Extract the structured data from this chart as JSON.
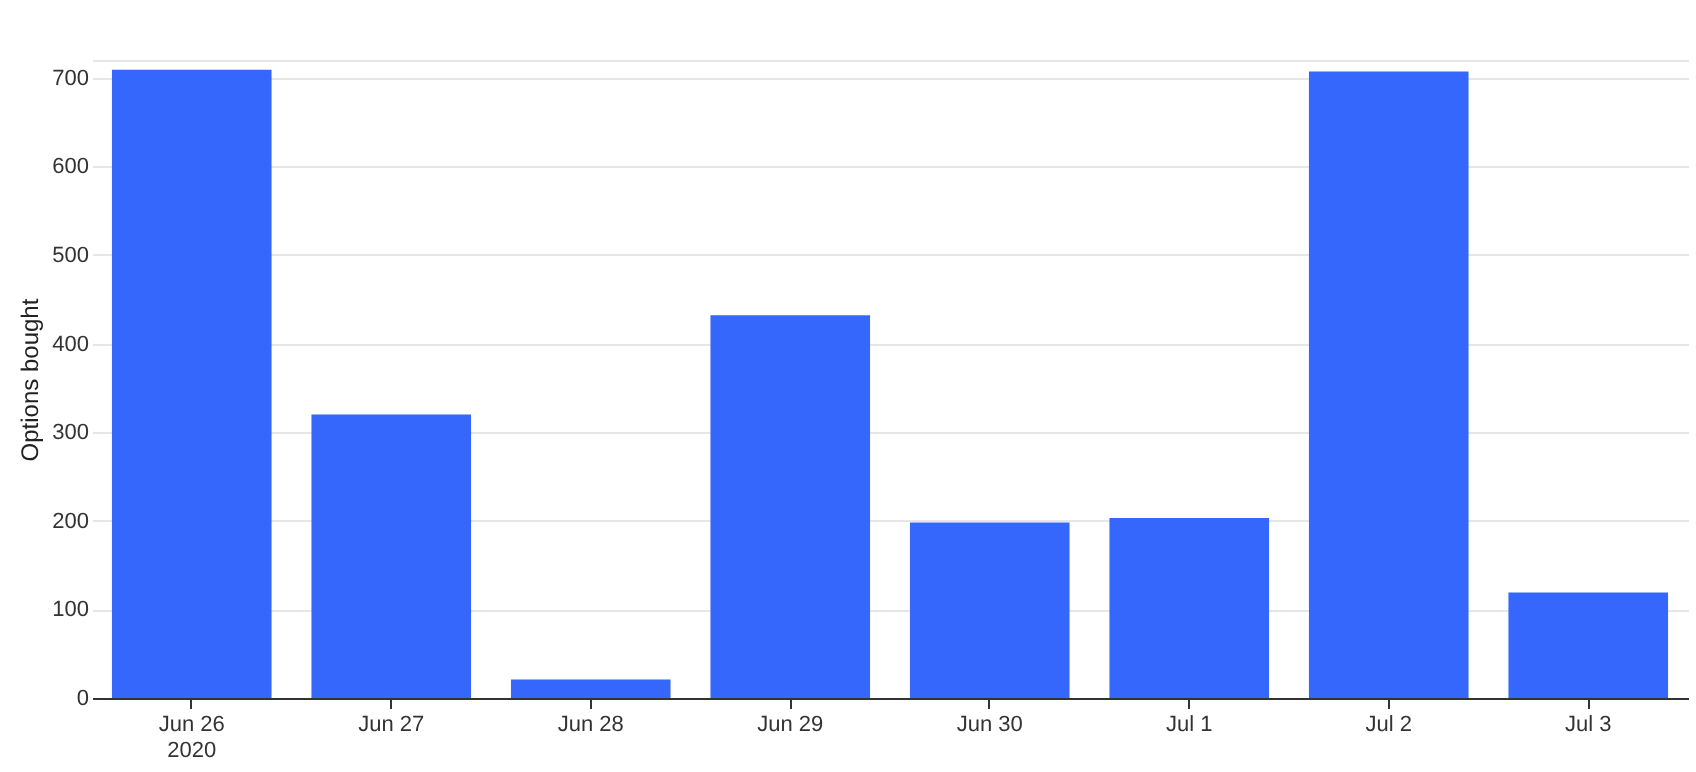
{
  "chart_data": {
    "type": "bar",
    "ylabel": "Options bought",
    "categories": [
      "Jun 26\n2020",
      "Jun 27",
      "Jun 28",
      "Jun 29",
      "Jun 30",
      "Jul 1",
      "Jul 2",
      "Jul 3"
    ],
    "values": [
      709,
      320,
      21,
      432,
      198,
      203,
      707,
      119
    ],
    "color": "#3567fd",
    "ylim": [
      0,
      720
    ],
    "yticks": [
      0,
      100,
      200,
      300,
      400,
      500,
      600,
      700,
      {
        "value": 720,
        "label": null
      }
    ],
    "grid": "y"
  }
}
